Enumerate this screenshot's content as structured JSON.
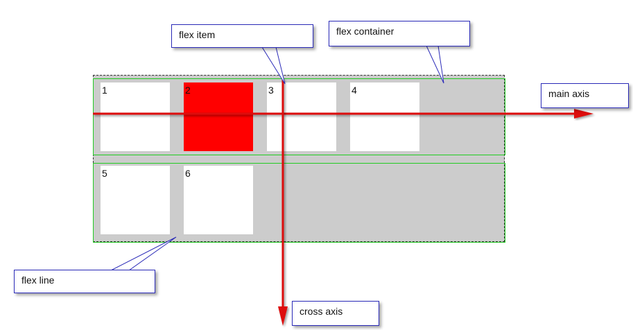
{
  "items": [
    {
      "label": "1"
    },
    {
      "label": "2"
    },
    {
      "label": "3"
    },
    {
      "label": "4"
    },
    {
      "label": "5"
    },
    {
      "label": "6"
    }
  ],
  "labels": {
    "flex_item": "flex item",
    "flex_container": "flex container",
    "main_axis": "main axis",
    "flex_line": "flex line",
    "cross_axis": "cross axis"
  },
  "colors": {
    "container": "#cccccc",
    "item": "#ffffff",
    "highlight_item": "#ff0000",
    "flex_line_border": "#22cc22",
    "axis": "#dd1111",
    "callout_border": "#2a2ab8"
  }
}
